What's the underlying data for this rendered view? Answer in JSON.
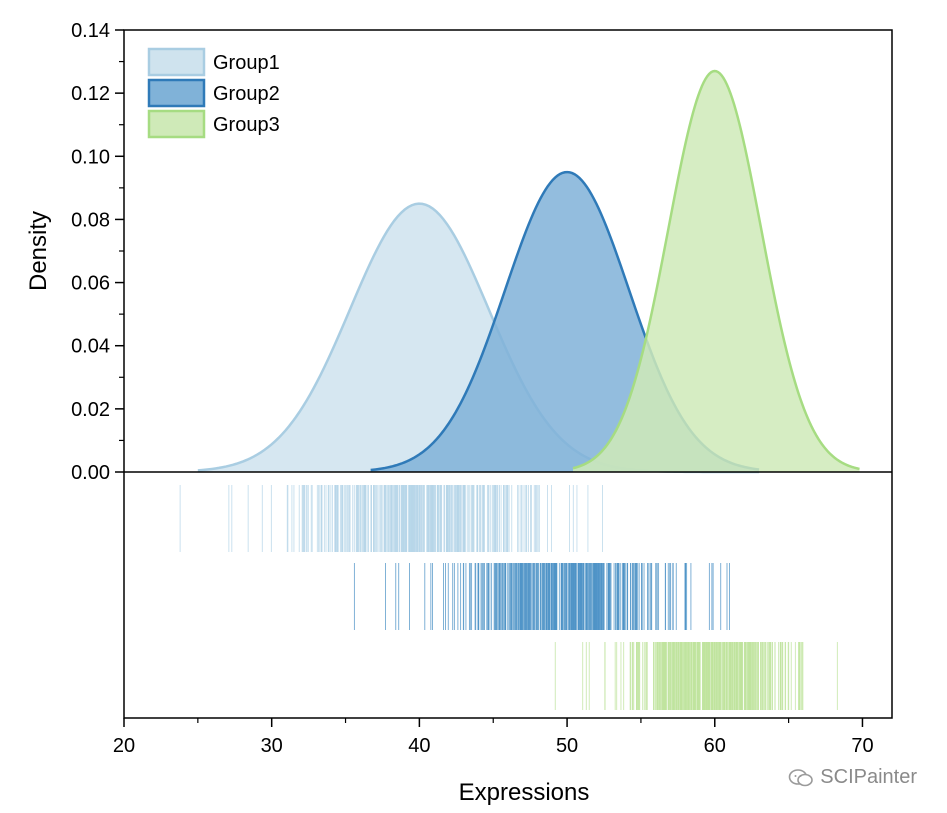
{
  "chart_data": {
    "type": "area",
    "xlabel": "Expressions",
    "ylabel": "Density",
    "xlim": [
      20,
      72
    ],
    "ylim": [
      0,
      0.14
    ],
    "xticks": [
      20,
      30,
      40,
      50,
      60,
      70
    ],
    "yticks": [
      0.0,
      0.02,
      0.04,
      0.06,
      0.08,
      0.1,
      0.12,
      0.14
    ],
    "ytick_labels": [
      "0.00",
      "0.02",
      "0.04",
      "0.06",
      "0.08",
      "0.10",
      "0.12",
      "0.14"
    ],
    "legend_position": "top-left",
    "series": [
      {
        "name": "Group1",
        "mean": 40,
        "peak_density": 0.085,
        "x_range": [
          25,
          63
        ],
        "fill": "#cfe3ee",
        "line": "#a9cde2",
        "rug_color": "#b7d6e8",
        "rug_range": [
          23.8,
          52.4
        ],
        "rug_extremes": [
          23.8,
          27.1,
          27.3,
          52.4
        ]
      },
      {
        "name": "Group2",
        "mean": 50,
        "peak_density": 0.095,
        "x_range": [
          36.7,
          63
        ],
        "fill": "#80b2d8",
        "line": "#2f7ab8",
        "rug_color": "#4f93c7",
        "rug_range": [
          35.6,
          61.0
        ],
        "rug_extremes": [
          35.6,
          38.4,
          38.6,
          61.0
        ]
      },
      {
        "name": "Group3",
        "mean": 60,
        "peak_density": 0.127,
        "x_range": [
          50.4,
          69.8
        ],
        "fill": "#cfeab8",
        "line": "#a6dc82",
        "rug_color": "#bfe49e",
        "rug_range": [
          49.2,
          68.3
        ],
        "rug_extremes": [
          49.2,
          51.3,
          51.5,
          68.3
        ]
      }
    ]
  },
  "watermark": "SCIPainter"
}
